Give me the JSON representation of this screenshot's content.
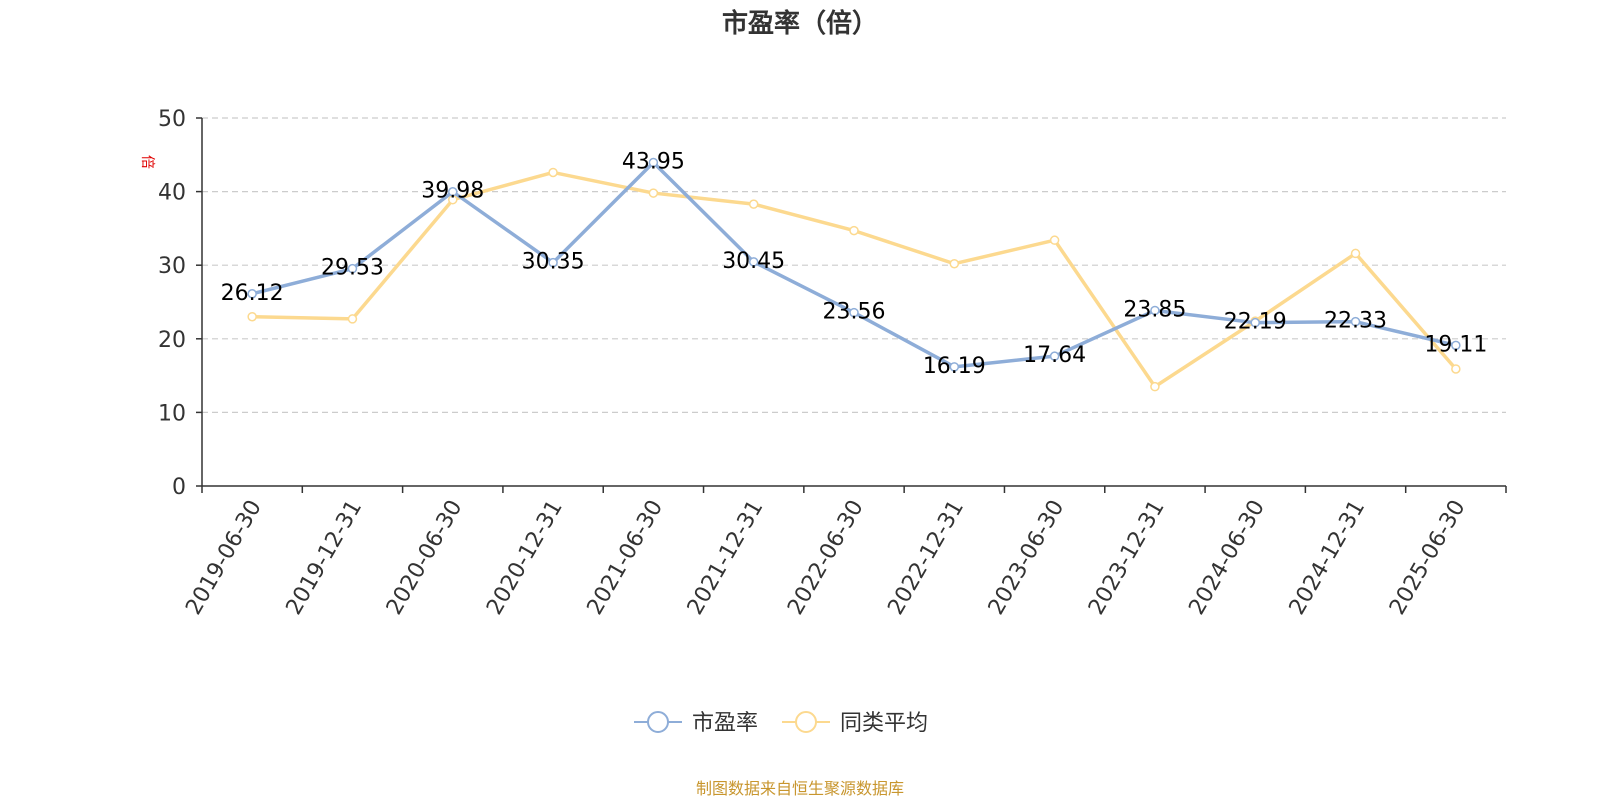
{
  "chart_data": {
    "type": "line",
    "title": "市盈率（倍）",
    "ylabel": "倍",
    "ylim": [
      0,
      50
    ],
    "yticks": [
      0,
      10,
      20,
      30,
      40,
      50
    ],
    "grid": true,
    "legend_position": "bottom",
    "categories": [
      "2019-06-30",
      "2019-12-31",
      "2020-06-30",
      "2020-12-31",
      "2021-06-30",
      "2021-12-31",
      "2022-06-30",
      "2022-12-31",
      "2023-06-30",
      "2023-12-31",
      "2024-06-30",
      "2024-12-31",
      "2025-06-30"
    ],
    "series": [
      {
        "name": "市盈率",
        "color": "#8eadd8",
        "show_labels": true,
        "values": [
          26.12,
          29.53,
          39.98,
          30.35,
          43.95,
          30.45,
          23.56,
          16.19,
          17.64,
          23.85,
          22.19,
          22.33,
          19.11
        ]
      },
      {
        "name": "同类平均",
        "color": "#fcd98f",
        "show_labels": false,
        "values": [
          23.0,
          22.7,
          38.9,
          42.6,
          39.8,
          38.3,
          34.7,
          30.2,
          33.4,
          13.5,
          22.4,
          31.6,
          15.9
        ]
      }
    ]
  },
  "source_note": "制图数据来自恒生聚源数据库"
}
